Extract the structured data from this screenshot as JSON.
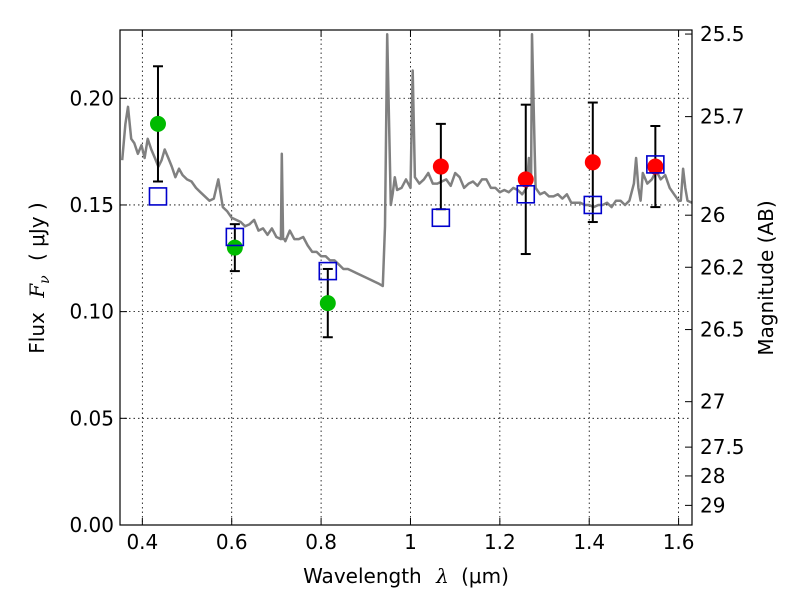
{
  "chart_data": {
    "type": "scatter",
    "xlabel_text": "Wavelength",
    "xlabel_symbol": "λ",
    "xlabel_unit": "(μm)",
    "ylabel_text": "Flux",
    "ylabel_symbol_main": "F",
    "ylabel_symbol_sub": "ν",
    "ylabel_unit": "( μJy )",
    "y2label": "Magnitude (AB)",
    "xlim": [
      0.35,
      1.63
    ],
    "ylim": [
      0.0,
      0.232
    ],
    "x_ticks": [
      0.4,
      0.6,
      0.8,
      1.0,
      1.2,
      1.4,
      1.6
    ],
    "x_tick_labels": [
      "0.4",
      "0.6",
      "0.8",
      "1",
      "1.2",
      "1.4",
      "1.6"
    ],
    "y_ticks": [
      0.0,
      0.05,
      0.1,
      0.15,
      0.2
    ],
    "y_tick_labels": [
      "0.00",
      "0.05",
      "0.10",
      "0.15",
      "0.20"
    ],
    "mag_ticks": [
      {
        "label": "25.5",
        "flux": 0.2301
      },
      {
        "label": "25.7",
        "flux": 0.1914
      },
      {
        "label": "26",
        "flux": 0.1452
      },
      {
        "label": "26.2",
        "flux": 0.1208
      },
      {
        "label": "26.5",
        "flux": 0.0916
      },
      {
        "label": "27",
        "flux": 0.0578
      },
      {
        "label": "27.5",
        "flux": 0.0365
      },
      {
        "label": "28",
        "flux": 0.023
      },
      {
        "label": "29",
        "flux": 0.0092
      }
    ],
    "grid": true,
    "colors": {
      "spectrum": "#808080",
      "optical_points": "#00bb00",
      "nir_points": "#ff0000",
      "model_squares": "#0000cc",
      "errorbars": "#000000"
    },
    "series": [
      {
        "kind": "spectrum",
        "x": [
          0.355,
          0.362,
          0.368,
          0.375,
          0.382,
          0.39,
          0.398,
          0.405,
          0.412,
          0.42,
          0.428,
          0.436,
          0.443,
          0.45,
          0.458,
          0.466,
          0.474,
          0.482,
          0.49,
          0.5,
          0.51,
          0.52,
          0.53,
          0.54,
          0.55,
          0.56,
          0.57,
          0.58,
          0.59,
          0.6,
          0.61,
          0.62,
          0.63,
          0.64,
          0.65,
          0.66,
          0.67,
          0.68,
          0.69,
          0.7,
          0.71,
          0.712,
          0.715,
          0.718,
          0.72,
          0.73,
          0.74,
          0.75,
          0.76,
          0.77,
          0.78,
          0.79,
          0.8,
          0.81,
          0.82,
          0.83,
          0.84,
          0.85,
          0.86,
          0.87,
          0.88,
          0.89,
          0.9,
          0.91,
          0.92,
          0.93,
          0.938,
          0.943,
          0.948,
          0.952,
          0.956,
          0.96,
          0.965,
          0.97,
          0.98,
          0.99,
          1.0,
          1.005,
          1.01,
          1.02,
          1.03,
          1.04,
          1.05,
          1.06,
          1.07,
          1.08,
          1.09,
          1.1,
          1.11,
          1.12,
          1.13,
          1.14,
          1.15,
          1.16,
          1.17,
          1.18,
          1.19,
          1.2,
          1.21,
          1.22,
          1.23,
          1.24,
          1.25,
          1.26,
          1.265,
          1.27,
          1.272,
          1.278,
          1.28,
          1.29,
          1.3,
          1.31,
          1.32,
          1.33,
          1.34,
          1.35,
          1.36,
          1.37,
          1.38,
          1.39,
          1.4,
          1.41,
          1.42,
          1.43,
          1.44,
          1.45,
          1.46,
          1.47,
          1.48,
          1.49,
          1.5,
          1.505,
          1.51,
          1.515,
          1.52,
          1.53,
          1.54,
          1.55,
          1.56,
          1.57,
          1.58,
          1.59,
          1.6,
          1.605,
          1.61,
          1.615,
          1.62,
          1.63
        ],
        "y": [
          0.171,
          0.188,
          0.196,
          0.181,
          0.179,
          0.174,
          0.178,
          0.172,
          0.181,
          0.176,
          0.172,
          0.168,
          0.171,
          0.176,
          0.172,
          0.168,
          0.163,
          0.167,
          0.164,
          0.162,
          0.161,
          0.158,
          0.156,
          0.154,
          0.152,
          0.153,
          0.162,
          0.149,
          0.147,
          0.144,
          0.143,
          0.142,
          0.14,
          0.141,
          0.143,
          0.138,
          0.139,
          0.136,
          0.139,
          0.135,
          0.134,
          0.174,
          0.134,
          0.134,
          0.133,
          0.138,
          0.134,
          0.134,
          0.135,
          0.131,
          0.128,
          0.128,
          0.126,
          0.126,
          0.124,
          0.124,
          0.122,
          0.12,
          0.12,
          0.119,
          0.118,
          0.117,
          0.116,
          0.115,
          0.114,
          0.113,
          0.112,
          0.14,
          0.23,
          0.19,
          0.15,
          0.155,
          0.163,
          0.157,
          0.158,
          0.162,
          0.158,
          0.213,
          0.163,
          0.16,
          0.162,
          0.165,
          0.16,
          0.16,
          0.161,
          0.162,
          0.159,
          0.165,
          0.163,
          0.158,
          0.16,
          0.161,
          0.159,
          0.162,
          0.162,
          0.158,
          0.158,
          0.156,
          0.157,
          0.156,
          0.158,
          0.157,
          0.155,
          0.158,
          0.172,
          0.163,
          0.23,
          0.175,
          0.158,
          0.155,
          0.156,
          0.154,
          0.154,
          0.155,
          0.153,
          0.155,
          0.151,
          0.151,
          0.151,
          0.15,
          0.15,
          0.149,
          0.15,
          0.15,
          0.151,
          0.149,
          0.152,
          0.152,
          0.15,
          0.152,
          0.16,
          0.172,
          0.158,
          0.152,
          0.165,
          0.16,
          0.162,
          0.166,
          0.162,
          0.164,
          0.158,
          0.155,
          0.152,
          0.152,
          0.167,
          0.158,
          0.152,
          0.151
        ]
      },
      {
        "kind": "points",
        "name": "optical",
        "x": [
          0.435,
          0.607,
          0.815
        ],
        "y": [
          0.188,
          0.13,
          0.104
        ],
        "yerr": [
          0.027,
          0.011,
          0.016
        ]
      },
      {
        "kind": "points",
        "name": "nir",
        "x": [
          1.068,
          1.258,
          1.408,
          1.548
        ],
        "y": [
          0.168,
          0.162,
          0.17,
          0.168
        ],
        "yerr": [
          0.02,
          0.035,
          0.028,
          0.019
        ]
      },
      {
        "kind": "squares",
        "name": "model",
        "x": [
          0.435,
          0.607,
          0.815,
          1.068,
          1.258,
          1.408,
          1.548
        ],
        "y": [
          0.154,
          0.135,
          0.119,
          0.144,
          0.155,
          0.15,
          0.169
        ]
      }
    ]
  }
}
